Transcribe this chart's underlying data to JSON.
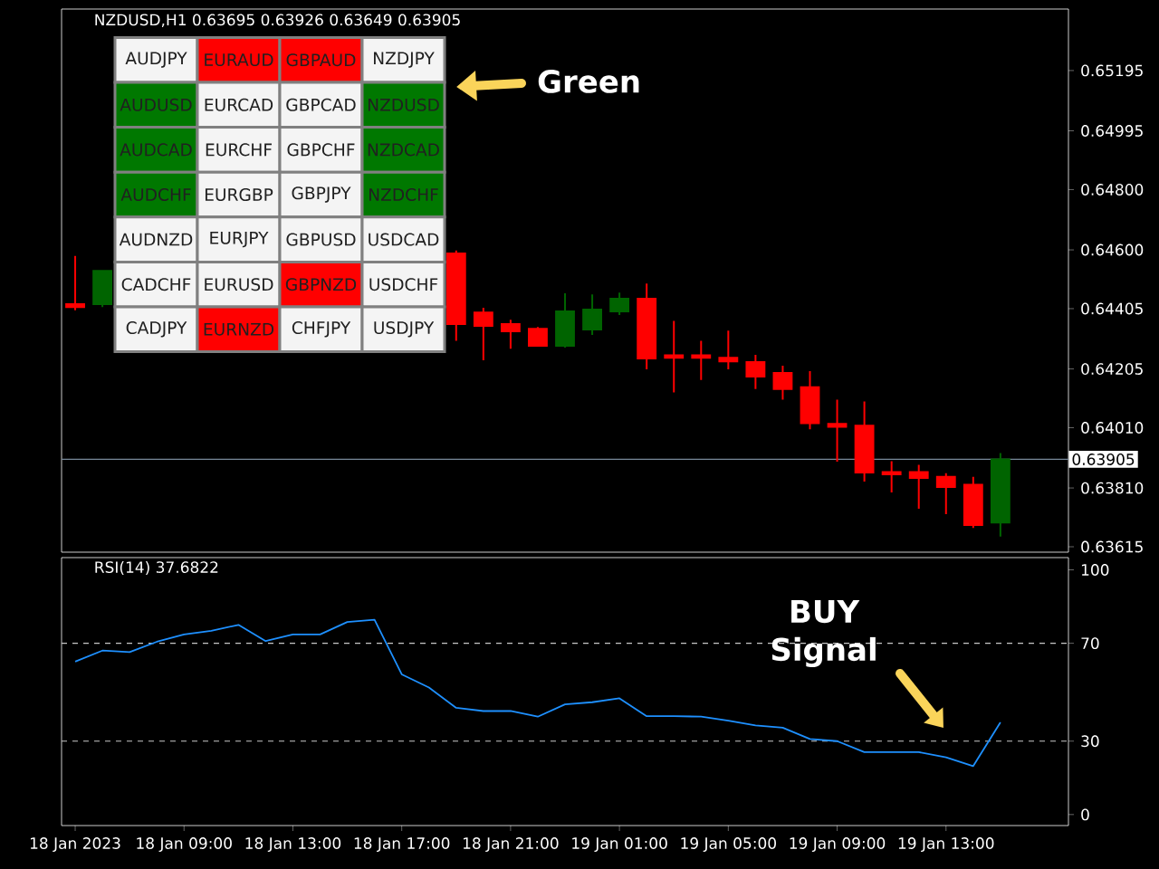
{
  "chart_data": [
    {
      "type": "candlestick",
      "title": "NZDUSD,H1 0.63695 0.63926 0.63649 0.63905",
      "categories": [
        null,
        null,
        null,
        null,
        null,
        null,
        null,
        null,
        null,
        null,
        null,
        null,
        null,
        null,
        null,
        null,
        null,
        null,
        null,
        null,
        null,
        null,
        null,
        null,
        null,
        null,
        null,
        null,
        null,
        null,
        null,
        null,
        null,
        null,
        null,
        null,
        null
      ],
      "ohlc": [
        [
          0.6442,
          0.6458,
          0.644,
          0.6441
        ],
        [
          0.6442,
          0.6453,
          0.6441,
          0.6453
        ],
        null,
        null,
        null,
        null,
        null,
        null,
        null,
        null,
        null,
        null,
        null,
        null,
        [
          0.64588,
          0.64598,
          0.64298,
          0.64354
        ],
        [
          0.64392,
          0.64408,
          0.64234,
          0.64348
        ],
        [
          0.64354,
          0.64368,
          0.64272,
          0.6433
        ],
        [
          0.64338,
          0.64344,
          0.64279,
          0.64282
        ],
        [
          0.64282,
          0.64456,
          0.64276,
          0.64396
        ],
        [
          0.64336,
          0.64452,
          0.64318,
          0.64402
        ],
        [
          0.64396,
          0.64458,
          0.64384,
          0.64438
        ],
        [
          0.64438,
          0.64488,
          0.64204,
          0.6424
        ],
        [
          0.6425,
          0.64364,
          0.64127,
          0.64242
        ],
        [
          0.6425,
          0.64298,
          0.64168,
          0.64242
        ],
        [
          0.64242,
          0.64332,
          0.64204,
          0.6423
        ],
        [
          0.64228,
          0.64252,
          0.64138,
          0.6418
        ],
        [
          0.64192,
          0.64216,
          0.64103,
          0.64138
        ],
        [
          0.64144,
          0.64198,
          0.64005,
          0.64025
        ],
        [
          0.64023,
          0.64103,
          0.63897,
          0.64013
        ],
        [
          0.64017,
          0.64097,
          0.63831,
          0.63861
        ],
        [
          0.63863,
          0.63899,
          0.63795,
          0.63855
        ],
        [
          0.63863,
          0.63887,
          0.63741,
          0.63843
        ],
        [
          0.63847,
          0.63859,
          0.63723,
          0.63813
        ],
        [
          0.63821,
          0.63847,
          0.63677,
          0.63687
        ],
        [
          0.63695,
          0.63926,
          0.63649,
          0.63905
        ],
        null,
        null
      ],
      "colors": [
        "#ff0000",
        "#006400",
        null,
        null,
        null,
        null,
        null,
        null,
        null,
        null,
        null,
        null,
        null,
        null,
        "#ff0000",
        "#ff0000",
        "#ff0000",
        "#ff0000",
        "#006400",
        "#006400",
        "#006400",
        "#ff0000",
        "#ff0000",
        "#ff0000",
        "#ff0000",
        "#ff0000",
        "#ff0000",
        "#ff0000",
        "#ff0000",
        "#ff0000",
        "#ff0000",
        "#ff0000",
        "#ff0000",
        "#ff0000",
        "#006400",
        null,
        null
      ],
      "ylim": [
        0.63597,
        0.65399
      ],
      "yticks": [
        {
          "value": 0.63615,
          "label": "0.63615"
        },
        {
          "value": 0.6381,
          "label": "0.63810"
        },
        {
          "value": 0.6401,
          "label": "0.64010"
        },
        {
          "value": 0.64205,
          "label": "0.64205"
        },
        {
          "value": 0.64405,
          "label": "0.64405"
        },
        {
          "value": 0.646,
          "label": "0.64600"
        },
        {
          "value": 0.648,
          "label": "0.64800"
        },
        {
          "value": 0.64995,
          "label": "0.64995"
        },
        {
          "value": 0.65195,
          "label": "0.65195"
        }
      ],
      "ref_lines": [
        {
          "axis": "y",
          "value": 0.63905,
          "label": "0.63905",
          "color": "#778899"
        }
      ],
      "tick_labels": "y"
    },
    {
      "type": "line",
      "title": "RSI(14) 37.6822",
      "categories": [
        "18 Jan 2023",
        null,
        null,
        null,
        "18 Jan 09:00",
        null,
        null,
        null,
        "18 Jan 13:00",
        null,
        null,
        null,
        "18 Jan 17:00",
        null,
        null,
        null,
        "18 Jan 21:00",
        null,
        null,
        null,
        "19 Jan 01:00",
        null,
        null,
        null,
        "19 Jan 05:00",
        null,
        null,
        null,
        "19 Jan 09:00",
        null,
        null,
        null,
        "19 Jan 13:00",
        null,
        null,
        null,
        null
      ],
      "series": [
        {
          "color": "#1e90ff",
          "values": [
            62.5,
            67.0,
            66.4,
            70.6,
            73.6,
            75.1,
            77.5,
            70.9,
            73.6,
            73.6,
            78.7,
            79.6,
            57.3,
            51.9,
            43.6,
            42.3,
            42.3,
            40.0,
            45.0,
            45.9,
            47.5,
            40.2,
            40.2,
            40.0,
            38.4,
            36.4,
            35.5,
            30.9,
            30.0,
            25.5,
            25.5,
            25.5,
            23.4,
            19.8,
            37.7,
            null,
            null
          ]
        }
      ],
      "ylim": [
        -4.5,
        105
      ],
      "yticks": [
        0,
        30,
        70,
        100
      ],
      "ref_lines": [
        {
          "axis": "y",
          "value": 30,
          "color": "#c8c8c8",
          "line_style": "dashed"
        },
        {
          "axis": "y",
          "value": 70,
          "color": "#c8c8c8",
          "line_style": "dashed"
        }
      ],
      "annotations": [
        "BUY Signal"
      ]
    },
    {
      "type": "other",
      "categories": [
        "AUDJPY",
        "EURAUD",
        "GBPAUD",
        "NZDJPY",
        "AUDUSD",
        "EURCAD",
        "GBPCAD",
        "NZDUSD",
        "AUDCAD",
        "EURCHF",
        "GBPCHF",
        "NZDCAD",
        "AUDCHF",
        "EURGBP",
        "GBPJPY",
        "NZDCHF",
        "AUDNZD",
        "EURJPY",
        "GBPUSD",
        "USDCAD",
        "CADCHF",
        "EURUSD",
        "GBPNZD",
        "USDCHF",
        "CADJPY",
        "EURNZD",
        "CHFJPY",
        "USDJPY"
      ],
      "colors": [
        "#f4f4f4",
        "#ff0000",
        "#ff0000",
        "#f4f4f4",
        "#007800",
        "#f4f4f4",
        "#f4f4f4",
        "#007800",
        "#007800",
        "#f4f4f4",
        "#f4f4f4",
        "#007800",
        "#007800",
        "#f4f4f4",
        "#f4f4f4",
        "#007800",
        "#f4f4f4",
        "#f4f4f4",
        "#f4f4f4",
        "#f4f4f4",
        "#f4f4f4",
        "#f4f4f4",
        "#ff0000",
        "#f4f4f4",
        "#f4f4f4",
        "#ff0000",
        "#f4f4f4",
        "#f4f4f4"
      ],
      "annotations": [
        "Green"
      ]
    }
  ]
}
